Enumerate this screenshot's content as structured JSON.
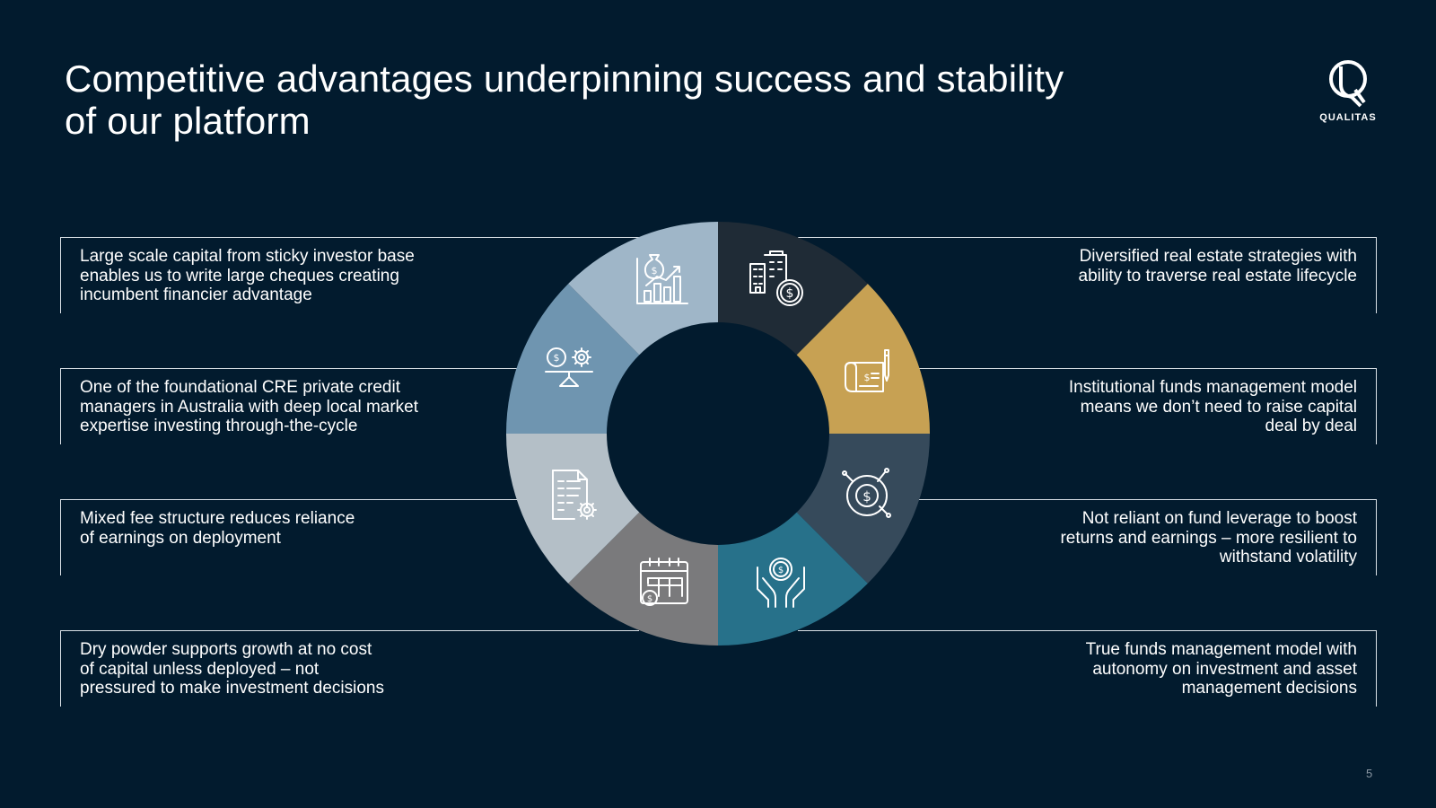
{
  "slide": {
    "title_lines": [
      "Competitive advantages underpinning success and stability",
      "of our platform"
    ],
    "page_number": "5"
  },
  "logo": {
    "wordmark": "QUALITAS",
    "icon": "q-logo-icon"
  },
  "colors": {
    "background": "#021b2e",
    "segment_top_left": "#1f2b36",
    "segment_top_right": "#c7a153",
    "segment_right_upper": "#364a5b",
    "segment_right_lower": "#27718a",
    "segment_bottom_right": "#7a7a7c",
    "segment_bottom_left": "#b4bfc7",
    "segment_left_lower": "#6f95b0",
    "segment_left_upper": "#9fb6c8"
  },
  "advantages_left": [
    {
      "lines": [
        "Large scale capital from sticky investor base",
        "enables us to write large cheques creating",
        "incumbent financier advantage"
      ]
    },
    {
      "lines": [
        "One of the foundational CRE private credit",
        "managers in Australia with deep local market",
        "expertise investing through-the-cycle"
      ]
    },
    {
      "lines": [
        "Mixed fee structure reduces reliance",
        "of earnings on deployment"
      ]
    },
    {
      "lines": [
        "Dry powder supports growth at no cost",
        "of capital unless deployed – not",
        "pressured to make investment decisions"
      ]
    }
  ],
  "advantages_right": [
    {
      "lines": [
        "Diversified real estate strategies with",
        "ability to traverse real estate lifecycle"
      ]
    },
    {
      "lines": [
        "Institutional funds management model",
        "means we don’t need to raise capital",
        "deal by deal"
      ]
    },
    {
      "lines": [
        "Not reliant on fund leverage to boost",
        "returns and earnings – more resilient to",
        "withstand volatility"
      ]
    },
    {
      "lines": [
        "True funds management model with",
        "autonomy on investment and asset",
        "management decisions"
      ]
    }
  ],
  "segments": [
    {
      "icon": "money-bag-growth-chart-icon",
      "color": "#1f2b36"
    },
    {
      "icon": "buildings-dollar-coin-icon",
      "color": "#c7a153"
    },
    {
      "icon": "cheque-pen-icon",
      "color": "#364a5b"
    },
    {
      "icon": "dollar-circular-arrows-icon",
      "color": "#27718a"
    },
    {
      "icon": "hands-holding-coin-icon",
      "color": "#7a7a7c"
    },
    {
      "icon": "calendar-dollar-icon",
      "color": "#b4bfc7"
    },
    {
      "icon": "document-gear-icon",
      "color": "#6f95b0"
    },
    {
      "icon": "scale-coin-gear-icon",
      "color": "#9fb6c8"
    }
  ]
}
